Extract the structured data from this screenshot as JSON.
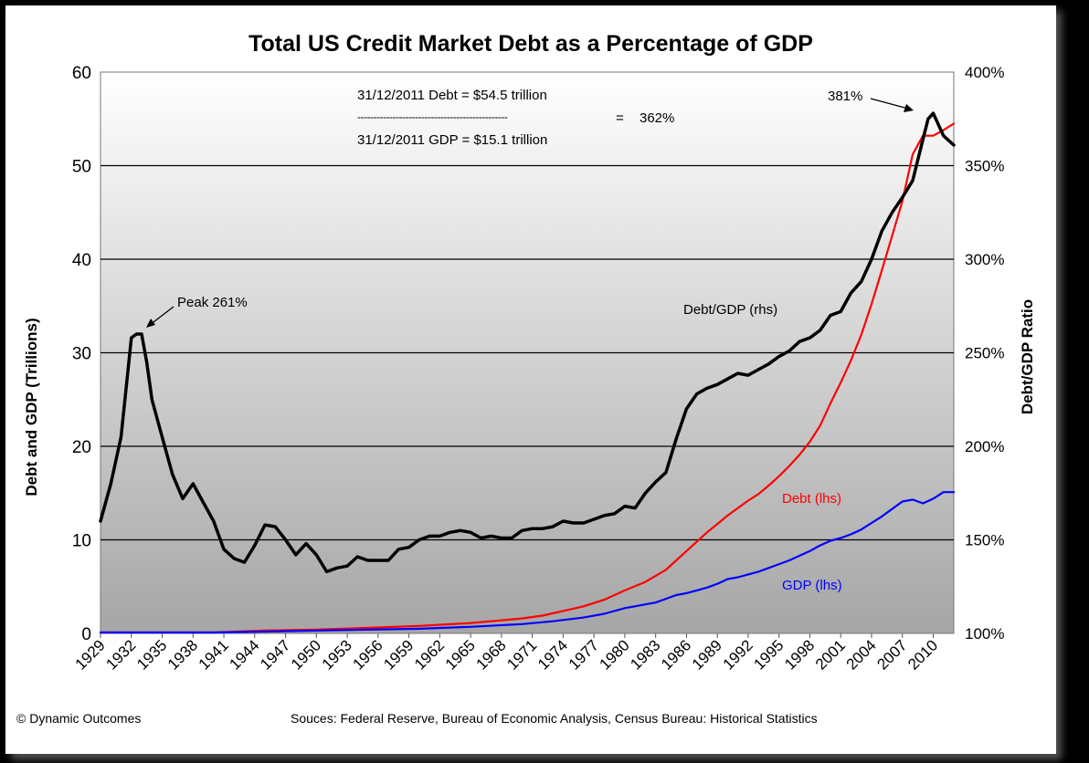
{
  "chart_data": {
    "type": "line",
    "title": "Total US Credit Market Debt as a Percentage of GDP",
    "ylabel_left": "Debt and GDP (Trillions)",
    "ylabel_right": "Debt/GDP Ratio",
    "ylim_left": [
      0,
      60
    ],
    "ylim_right": [
      100,
      400
    ],
    "yticks_left": [
      "0",
      "10",
      "20",
      "30",
      "40",
      "50",
      "60"
    ],
    "yticks_right": [
      "100%",
      "150%",
      "200%",
      "250%",
      "300%",
      "350%",
      "400%"
    ],
    "xlim": [
      1929,
      2012
    ],
    "xticks": [
      "1929",
      "1932",
      "1935",
      "1938",
      "1941",
      "1944",
      "1947",
      "1950",
      "1953",
      "1956",
      "1959",
      "1962",
      "1965",
      "1968",
      "1971",
      "1974",
      "1977",
      "1980",
      "1983",
      "1986",
      "1989",
      "1992",
      "1995",
      "1998",
      "2001",
      "2004",
      "2007",
      "2010"
    ],
    "series": [
      {
        "name": "Debt/GDP (rhs)",
        "axis": "right",
        "color": "#000000",
        "x": [
          1929,
          1930,
          1931,
          1932,
          1932.5,
          1933,
          1933.5,
          1934,
          1935,
          1936,
          1937,
          1938,
          1939,
          1940,
          1941,
          1942,
          1943,
          1944,
          1945,
          1946,
          1947,
          1948,
          1949,
          1950,
          1951,
          1952,
          1953,
          1954,
          1955,
          1956,
          1957,
          1958,
          1959,
          1960,
          1961,
          1962,
          1963,
          1964,
          1965,
          1966,
          1967,
          1968,
          1969,
          1970,
          1971,
          1972,
          1973,
          1974,
          1975,
          1976,
          1977,
          1978,
          1979,
          1980,
          1981,
          1982,
          1983,
          1984,
          1985,
          1986,
          1987,
          1988,
          1989,
          1990,
          1991,
          1992,
          1993,
          1994,
          1995,
          1996,
          1997,
          1998,
          1999,
          2000,
          2001,
          2002,
          2003,
          2004,
          2005,
          2006,
          2007,
          2008,
          2009,
          2009.5,
          2010,
          2011,
          2012
        ],
        "values": [
          160,
          180,
          205,
          258,
          260,
          260,
          245,
          225,
          205,
          185,
          172,
          180,
          170,
          160,
          145,
          140,
          138,
          147,
          158,
          157,
          150,
          142,
          148,
          142,
          133,
          135,
          136,
          141,
          139,
          139,
          139,
          145,
          146,
          150,
          152,
          152,
          154,
          155,
          154,
          151,
          152,
          151,
          151,
          155,
          156,
          156,
          157,
          160,
          159,
          159,
          161,
          163,
          164,
          168,
          167,
          175,
          181,
          186,
          204,
          220,
          228,
          231,
          233,
          236,
          239,
          238,
          241,
          244,
          248,
          251,
          256,
          258,
          262,
          270,
          272,
          282,
          288,
          300,
          315,
          325,
          333,
          342,
          364,
          375,
          378,
          366,
          361
        ]
      },
      {
        "name": "Debt (lhs)",
        "axis": "left",
        "color": "#ff0000",
        "x": [
          1929,
          1935,
          1940,
          1945,
          1950,
          1955,
          1960,
          1965,
          1970,
          1972,
          1974,
          1976,
          1978,
          1980,
          1982,
          1984,
          1985,
          1986,
          1987,
          1988,
          1989,
          1990,
          1991,
          1992,
          1993,
          1994,
          1995,
          1996,
          1997,
          1998,
          1999,
          2000,
          2001,
          2002,
          2003,
          2004,
          2005,
          2006,
          2007,
          2008,
          2009,
          2010,
          2011,
          2012
        ],
        "values": [
          0.1,
          0.1,
          0.1,
          0.3,
          0.4,
          0.6,
          0.8,
          1.1,
          1.6,
          1.9,
          2.4,
          2.9,
          3.6,
          4.6,
          5.5,
          6.8,
          7.8,
          8.8,
          9.8,
          10.8,
          11.7,
          12.6,
          13.4,
          14.2,
          14.9,
          15.8,
          16.8,
          17.9,
          19.1,
          20.5,
          22.2,
          24.6,
          26.8,
          29.2,
          31.9,
          35.2,
          38.8,
          42.5,
          46.2,
          51.2,
          53.2,
          53.2,
          53.8,
          54.5
        ]
      },
      {
        "name": "GDP (lhs)",
        "axis": "left",
        "color": "#0000ff",
        "x": [
          1929,
          1935,
          1940,
          1945,
          1950,
          1955,
          1960,
          1965,
          1970,
          1973,
          1976,
          1978,
          1980,
          1981,
          1982,
          1983,
          1984,
          1985,
          1986,
          1987,
          1988,
          1989,
          1990,
          1991,
          1992,
          1993,
          1994,
          1995,
          1996,
          1997,
          1998,
          1999,
          2000,
          2001,
          2002,
          2003,
          2004,
          2005,
          2006,
          2007,
          2008,
          2009,
          2010,
          2011,
          2012
        ],
        "values": [
          0.1,
          0.1,
          0.1,
          0.2,
          0.3,
          0.4,
          0.5,
          0.7,
          1.0,
          1.3,
          1.7,
          2.1,
          2.7,
          2.9,
          3.1,
          3.3,
          3.7,
          4.1,
          4.3,
          4.6,
          4.9,
          5.3,
          5.8,
          6.0,
          6.3,
          6.6,
          7.0,
          7.4,
          7.8,
          8.3,
          8.8,
          9.4,
          9.9,
          10.2,
          10.6,
          11.1,
          11.8,
          12.5,
          13.3,
          14.1,
          14.3,
          13.9,
          14.4,
          15.1,
          15.1
        ]
      }
    ],
    "annotations": {
      "debt_line": "31/12/2011 Debt  = $54.5 trillion",
      "dashes": "-----------------------------------------------",
      "equals": "=",
      "ratio": "362%",
      "gdp_line": "31/12/2011 GDP  = $15.1 trillion",
      "peak_label": "Peak 261%",
      "max_label": "381%",
      "series_label_ratio": "Debt/GDP (rhs)",
      "series_label_debt": "Debt (lhs)",
      "series_label_gdp": "GDP (lhs)"
    },
    "footer_left": "© Dynamic Outcomes",
    "footer_right": "Souces:  Federal Reserve, Bureau of Economic Analysis, Census Bureau: Historical Statistics"
  }
}
